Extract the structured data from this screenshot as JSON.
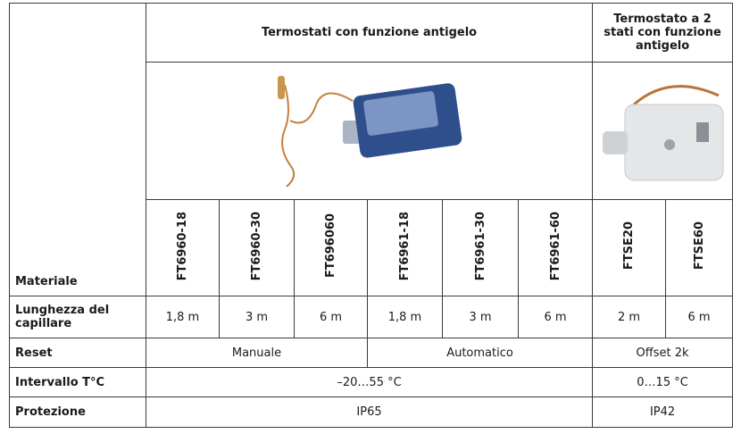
{
  "table": {
    "header": {
      "label_column": "",
      "group1": "Termostati con funzione antigelo",
      "group2": "Termostato a 2 stati con funzione antigelo"
    },
    "material_label": "Materiale",
    "models": [
      "FT6960-18",
      "FT6960-30",
      "FT696060",
      "FT6961-18",
      "FT6961-30",
      "FT6961-60",
      "FTSE20",
      "FTSE60"
    ],
    "rows": [
      {
        "label": "Lunghezza del capillare",
        "cells": [
          "1,8 m",
          "3 m",
          "6 m",
          "1,8 m",
          "3 m",
          "6 m",
          "2 m",
          "6 m"
        ]
      },
      {
        "label": "Reset",
        "cells": [
          "Manuale",
          "Automatico",
          "Offset 2k"
        ]
      },
      {
        "label": "Intervallo T°C",
        "cells": [
          "–20…55 °C",
          "0…15 °C"
        ]
      },
      {
        "label": "Protezione",
        "cells": [
          "IP65",
          "IP42"
        ]
      }
    ]
  }
}
